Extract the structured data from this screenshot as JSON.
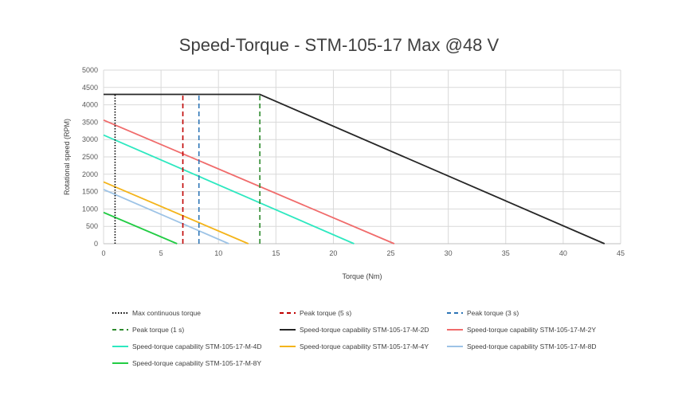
{
  "chart_data": {
    "type": "line",
    "title": "Speed-Torque - STM-105-17 Max @48 V",
    "xlabel": "Torque (Nm)",
    "ylabel": "Rotational speed (RPM)",
    "xlim": [
      0,
      45
    ],
    "ylim": [
      0,
      5000
    ],
    "xticks": [
      0,
      5,
      10,
      15,
      20,
      25,
      30,
      35,
      40,
      45
    ],
    "yticks": [
      0,
      500,
      1000,
      1500,
      2000,
      2500,
      3000,
      3500,
      4000,
      4500,
      5000
    ],
    "grid": true,
    "legend_position": "bottom",
    "series": [
      {
        "name": "Max continuous torque",
        "color": "#000000",
        "style": "dotted",
        "x": [
          1.0,
          1.0
        ],
        "y": [
          0,
          4300
        ]
      },
      {
        "name": "Peak torque (5 s)",
        "color": "#c00000",
        "style": "dashed",
        "x": [
          6.9,
          6.9
        ],
        "y": [
          0,
          4300
        ]
      },
      {
        "name": "Peak torque (3 s)",
        "color": "#2e75b6",
        "style": "dashed",
        "x": [
          8.3,
          8.3
        ],
        "y": [
          0,
          4300
        ]
      },
      {
        "name": "Peak torque (1 s)",
        "color": "#2e8b2e",
        "style": "dashed",
        "x": [
          13.6,
          13.6
        ],
        "y": [
          0,
          4300
        ]
      },
      {
        "name": "Speed-torque capability STM-105-17-M-2D",
        "color": "#262626",
        "style": "solid",
        "x": [
          0,
          13.6,
          43.6
        ],
        "y": [
          4300,
          4300,
          0
        ]
      },
      {
        "name": "Speed-torque capability STM-105-17-M-2Y",
        "color": "#f06b6b",
        "style": "solid",
        "x": [
          0,
          25.3
        ],
        "y": [
          3560,
          0
        ]
      },
      {
        "name": "Speed-torque capability STM-105-17-M-4D",
        "color": "#2ee8c0",
        "style": "solid",
        "x": [
          0,
          21.8
        ],
        "y": [
          3130,
          0
        ]
      },
      {
        "name": "Speed-torque capability STM-105-17-M-4Y",
        "color": "#f4b41a",
        "style": "solid",
        "x": [
          0,
          12.6
        ],
        "y": [
          1780,
          0
        ]
      },
      {
        "name": "Speed-torque capability STM-105-17-M-8D",
        "color": "#9dc3e6",
        "style": "solid",
        "x": [
          0,
          10.9
        ],
        "y": [
          1560,
          0
        ]
      },
      {
        "name": "Speed-torque capability STM-105-17-M-8Y",
        "color": "#22cc44",
        "style": "solid",
        "x": [
          0,
          6.4
        ],
        "y": [
          900,
          0
        ]
      }
    ]
  }
}
